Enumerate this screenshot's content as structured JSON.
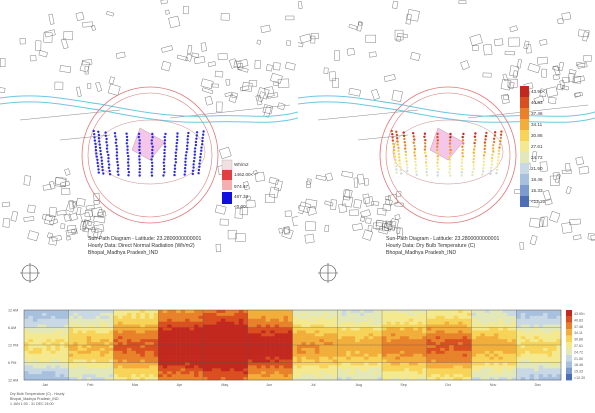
{
  "left_panel": {
    "caption": [
      "Sun-Path Diagram - Latitude: 23.2800000000001",
      "Hourly Data: Direct Normal Radiation (Wh/m2)",
      "Bhopal_Madhya Pradesh_IND"
    ],
    "legend": {
      "labels": [
        "Wh/m2",
        "1462.00<",
        "974.67",
        "487.33",
        "<0.00"
      ],
      "colors": [
        "#f0e0e0",
        "#e04040",
        "#f2b0b0",
        "#1010e0"
      ]
    },
    "point_color": "#2a2ae0"
  },
  "right_panel": {
    "caption": [
      "Sun-Path Diagram - Latitude: 23.2800000000001",
      "Hourly Data: Dry Bulb Temperature (C)",
      "Bhopal_Madhya Pradesh_IND"
    ],
    "legend": {
      "labels": [
        "43.90<",
        "40.83",
        "37.46",
        "34.11",
        "30.86",
        "27.61",
        "24.72",
        "21.50",
        "18.46",
        "15.33",
        "<12.20"
      ],
      "colors": [
        "#c3281f",
        "#d94f1f",
        "#e8822a",
        "#f1ae3a",
        "#f7d458",
        "#f4e98e",
        "#e3e8b8",
        "#c8d8e4",
        "#a6c0de",
        "#7c9cd0",
        "#4d6db7"
      ]
    }
  },
  "strip": {
    "y_labels": [
      "12 AM",
      "6 AM",
      "12 PM",
      "6 PM",
      "12 AM"
    ],
    "months": [
      "Jan",
      "Feb",
      "Mar",
      "Apr",
      "May",
      "Jun",
      "Jul",
      "Aug",
      "Sep",
      "Oct",
      "Nov",
      "Dec"
    ],
    "legend_labels": [
      "43.90<",
      "40.83",
      "37.46",
      "34.11",
      "30.86",
      "27.61",
      "24.72",
      "21.50",
      "18.46",
      "15.33",
      "<12.20"
    ],
    "caption": [
      "Dry Bulb Temperature (C) - Hourly",
      "Bhopal_Madhya Pradesh_IND",
      "1 JAN 1:00 - 31 DEC 24:00"
    ],
    "monthly_level": [
      0.3,
      0.42,
      0.62,
      0.88,
      0.95,
      0.8,
      0.5,
      0.45,
      0.55,
      0.62,
      0.45,
      0.32
    ]
  }
}
